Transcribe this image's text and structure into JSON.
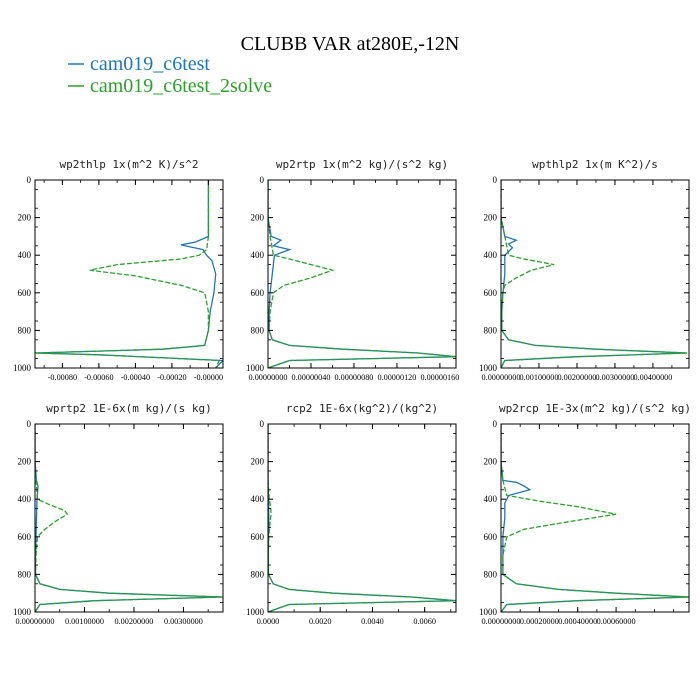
{
  "figure": {
    "title": "CLUBB VAR at280E,-12N",
    "legend": [
      {
        "label": "cam019_c6test",
        "color": "#1f77b4",
        "style": "solid"
      },
      {
        "label": "cam019_c6test_2solve",
        "color": "#2ca02c",
        "style": "dashed"
      }
    ]
  },
  "chart_data": [
    {
      "type": "line",
      "title": "wp2thlp  1x(m^2 K)/s^2",
      "ylim": [
        1000,
        0
      ],
      "yticks": [
        0,
        200,
        400,
        600,
        800,
        1000
      ],
      "ytick_labels": [
        "0",
        "200",
        "400",
        "600",
        "800",
        "1000"
      ],
      "xlim": [
        -0.00095,
        8e-05
      ],
      "xticks": [
        -0.0008,
        -0.0006,
        -0.0004,
        -0.0002,
        0.0
      ],
      "xtick_labels": [
        "-0.00080",
        "-0.00060",
        "-0.00040",
        "-0.00020",
        "-0.00000"
      ],
      "series": [
        {
          "name": "cam019_c6test",
          "y": [
            0,
            100,
            200,
            300,
            330,
            345,
            370,
            400,
            430,
            500,
            600,
            700,
            800,
            880,
            900,
            920,
            930,
            960,
            1000
          ],
          "x": [
            0,
            0,
            0,
            0,
            -7e-05,
            -0.00015,
            -3e-05,
            -1e-05,
            2e-05,
            4e-05,
            3e-05,
            1e-05,
            0,
            -2e-05,
            -0.00025,
            -0.00095,
            -0.0006,
            8e-05,
            4e-05
          ]
        },
        {
          "name": "cam019_c6test_2solve",
          "y": [
            0,
            100,
            200,
            300,
            370,
            400,
            420,
            450,
            480,
            510,
            560,
            600,
            700,
            800,
            880,
            900,
            920,
            930,
            960,
            1000
          ],
          "x": [
            0,
            0,
            0,
            0,
            -1e-05,
            -5e-05,
            -0.00015,
            -0.0005,
            -0.00065,
            -0.0004,
            -0.00015,
            -2e-05,
            0,
            0,
            -2e-05,
            -0.00025,
            -0.00095,
            -0.0006,
            6e-05,
            4e-05
          ]
        }
      ]
    },
    {
      "type": "line",
      "title": "wp2rtp  1x(m^2 kg)/(s^2 kg)",
      "ylim": [
        1000,
        0
      ],
      "yticks": [
        0,
        200,
        400,
        600,
        800,
        1000
      ],
      "ytick_labels": [
        "0",
        "200",
        "400",
        "600",
        "800",
        "1000"
      ],
      "xlim": [
        0.0,
        1.75e-06
      ],
      "xticks": [
        0.0,
        4e-07,
        8e-07,
        1.2e-06,
        1.6e-06
      ],
      "xtick_labels": [
        "0.00000000",
        "0.00000040",
        "0.00000080",
        "0.00000120",
        "0.00000160"
      ],
      "series": [
        {
          "name": "cam019_c6test",
          "y": [
            0,
            100,
            200,
            300,
            320,
            350,
            370,
            400,
            500,
            600,
            700,
            800,
            850,
            880,
            900,
            920,
            940,
            960,
            1000
          ],
          "x": [
            0,
            0,
            0,
            3e-08,
            1.2e-07,
            5e-08,
            2e-07,
            6e-08,
            4e-08,
            2e-08,
            1e-08,
            1e-08,
            4e-08,
            2e-07,
            7e-07,
            1.4e-06,
            1.75e-06,
            2e-07,
            0
          ]
        },
        {
          "name": "cam019_c6test_2solve",
          "y": [
            0,
            100,
            200,
            300,
            400,
            420,
            450,
            480,
            520,
            560,
            600,
            700,
            800,
            850,
            880,
            900,
            920,
            940,
            960,
            1000
          ],
          "x": [
            0,
            0,
            0,
            2e-08,
            5e-08,
            2e-07,
            4e-07,
            6e-07,
            4e-07,
            1.5e-07,
            5e-08,
            2e-08,
            1e-08,
            4e-08,
            2e-07,
            7e-07,
            1.4e-06,
            1.75e-06,
            2e-07,
            0
          ]
        }
      ]
    },
    {
      "type": "line",
      "title": "wpthlp2  1x(m K^2)/s",
      "ylim": [
        1000,
        0
      ],
      "yticks": [
        0,
        200,
        400,
        600,
        800,
        1000
      ],
      "ytick_labels": [
        "0",
        "200",
        "400",
        "600",
        "800",
        "1000"
      ],
      "xlim": [
        0.0,
        0.00495
      ],
      "xticks": [
        0.0,
        0.001,
        0.002,
        0.003,
        0.004
      ],
      "xtick_labels": [
        "0.00000000",
        "0.00100000",
        "0.00200000",
        "0.00300000",
        "0.00400000"
      ],
      "series": [
        {
          "name": "cam019_c6test",
          "y": [
            0,
            100,
            200,
            300,
            320,
            340,
            360,
            400,
            500,
            600,
            700,
            800,
            850,
            880,
            900,
            920,
            940,
            960,
            1000
          ],
          "x": [
            0,
            0,
            0,
            0.0001,
            0.0004,
            0.0002,
            0.0003,
            0.0001,
            0.0001,
            5e-05,
            2e-05,
            2e-05,
            0.0002,
            0.0009,
            0.0025,
            0.0049,
            0.002,
            0.0001,
            0
          ]
        },
        {
          "name": "cam019_c6test_2solve",
          "y": [
            0,
            100,
            200,
            300,
            400,
            420,
            450,
            480,
            520,
            560,
            600,
            700,
            800,
            850,
            880,
            900,
            920,
            940,
            960,
            1000
          ],
          "x": [
            0,
            0,
            0,
            0.0001,
            0.0002,
            0.0006,
            0.0014,
            0.0008,
            0.0004,
            0.0001,
            5e-05,
            2e-05,
            2e-05,
            0.0002,
            0.0009,
            0.0025,
            0.0049,
            0.002,
            0.0001,
            0
          ]
        }
      ]
    },
    {
      "type": "line",
      "title": "wprtp2  1E-6x(m kg)/(s kg)",
      "ylim": [
        1000,
        0
      ],
      "yticks": [
        0,
        200,
        400,
        600,
        800,
        1000
      ],
      "ytick_labels": [
        "0",
        "200",
        "400",
        "600",
        "800",
        "1000"
      ],
      "xlim": [
        0.0,
        0.0038
      ],
      "xticks": [
        0.0,
        0.001,
        0.002,
        0.003
      ],
      "xtick_labels": [
        "0.00000000",
        "0.00100000",
        "0.00200000",
        "0.00300000"
      ],
      "series": [
        {
          "name": "cam019_c6test",
          "y": [
            0,
            100,
            200,
            300,
            330,
            400,
            500,
            600,
            700,
            800,
            850,
            880,
            900,
            920,
            940,
            960,
            1000
          ],
          "x": [
            0,
            0,
            0,
            3e-05,
            6e-05,
            4e-05,
            3e-05,
            2e-05,
            1e-05,
            1e-05,
            0.0001,
            0.0005,
            0.0015,
            0.0038,
            0.0012,
            0.0001,
            0
          ]
        },
        {
          "name": "cam019_c6test_2solve",
          "y": [
            0,
            100,
            200,
            300,
            400,
            430,
            460,
            480,
            520,
            560,
            600,
            700,
            800,
            850,
            880,
            900,
            920,
            940,
            960,
            1000
          ],
          "x": [
            0,
            0,
            0,
            2e-05,
            5e-05,
            0.0003,
            0.0006,
            0.00065,
            0.0004,
            0.0002,
            5e-05,
            2e-05,
            1e-05,
            0.0001,
            0.0005,
            0.0015,
            0.0038,
            0.0012,
            0.0001,
            0
          ]
        }
      ]
    },
    {
      "type": "line",
      "title": "rcp2  1E-6x(kg^2)/(kg^2)",
      "ylim": [
        1000,
        0
      ],
      "yticks": [
        0,
        200,
        400,
        600,
        800,
        1000
      ],
      "ytick_labels": [
        "0",
        "200",
        "400",
        "600",
        "800",
        "1000"
      ],
      "xlim": [
        0.0,
        0.0072
      ],
      "xticks": [
        0.0,
        0.002,
        0.004,
        0.006
      ],
      "xtick_labels": [
        "0.0000",
        "0.0020",
        "0.0040",
        "0.0060"
      ],
      "series": [
        {
          "name": "cam019_c6test",
          "y": [
            0,
            100,
            200,
            300,
            400,
            500,
            600,
            700,
            800,
            850,
            880,
            900,
            920,
            940,
            960,
            1000
          ],
          "x": [
            0,
            0,
            0,
            0,
            2e-05,
            3e-05,
            2e-05,
            1e-05,
            2e-05,
            0.0002,
            0.0008,
            0.0025,
            0.0055,
            0.0072,
            0.0008,
            0
          ]
        },
        {
          "name": "cam019_c6test_2solve",
          "y": [
            0,
            100,
            200,
            300,
            400,
            440,
            480,
            520,
            600,
            700,
            800,
            850,
            880,
            900,
            920,
            940,
            960,
            1000
          ],
          "x": [
            0,
            0,
            0,
            0,
            5e-05,
            0.0001,
            0.00012,
            8e-05,
            3e-05,
            1e-05,
            2e-05,
            0.0002,
            0.0008,
            0.0025,
            0.0055,
            0.0072,
            0.0008,
            0
          ]
        }
      ]
    },
    {
      "type": "line",
      "title": "wp2rcp  1E-3x(m^2 kg)/(s^2 kg)",
      "ylim": [
        1000,
        0
      ],
      "yticks": [
        0,
        200,
        400,
        600,
        800,
        1000
      ],
      "ytick_labels": [
        "0",
        "200",
        "400",
        "600",
        "800",
        "1000"
      ],
      "xlim": [
        0.0,
        0.00098
      ],
      "xticks": [
        0.0,
        0.0002,
        0.0004,
        0.0006
      ],
      "xtick_labels": [
        "0.00000000",
        "0.00020000",
        "0.00040000",
        "0.00060000"
      ],
      "series": [
        {
          "name": "cam019_c6test",
          "y": [
            0,
            100,
            200,
            300,
            310,
            330,
            350,
            380,
            420,
            500,
            600,
            700,
            800,
            850,
            880,
            900,
            920,
            940,
            960,
            1000
          ],
          "x": [
            0,
            0,
            0,
            1e-05,
            8e-05,
            0.00012,
            0.00015,
            4e-05,
            2e-05,
            2e-05,
            1e-05,
            1e-05,
            1e-05,
            8e-05,
            0.0003,
            0.0006,
            0.00098,
            0.0004,
            3e-05,
            0
          ]
        },
        {
          "name": "cam019_c6test_2solve",
          "y": [
            0,
            100,
            200,
            300,
            380,
            410,
            440,
            480,
            520,
            560,
            600,
            700,
            800,
            850,
            880,
            900,
            920,
            940,
            960,
            1000
          ],
          "x": [
            0,
            0,
            0,
            1e-05,
            3e-05,
            0.0002,
            0.0004,
            0.0006,
            0.00035,
            0.00012,
            3e-05,
            1e-05,
            1e-05,
            8e-05,
            0.0003,
            0.0006,
            0.00098,
            0.0004,
            3e-05,
            0
          ]
        }
      ]
    }
  ]
}
